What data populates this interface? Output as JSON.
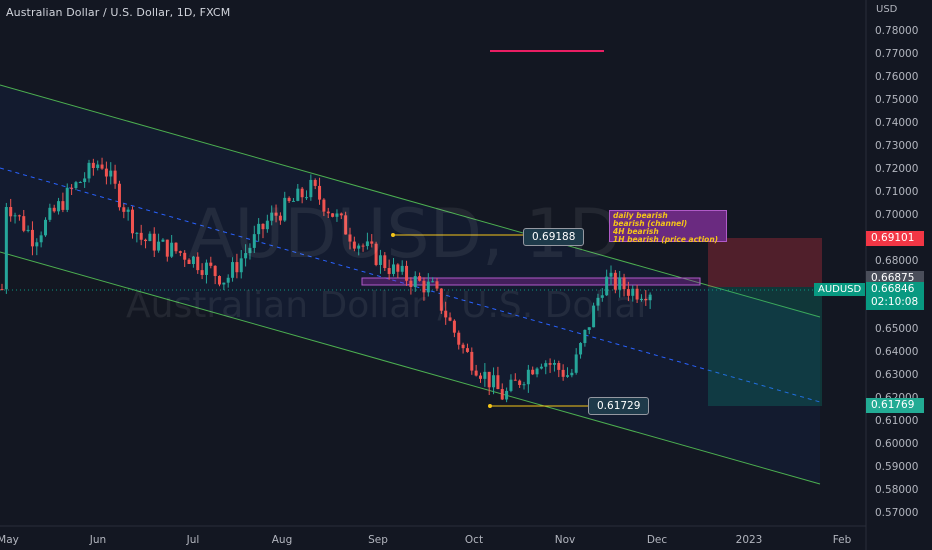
{
  "header": {
    "title": "Australian Dollar / U.S. Dollar, 1D, FXCM",
    "currency": "USD"
  },
  "watermark": {
    "symbol": "AUDUSD, 1D",
    "name": "Australian Dollar / U.S. Dollar"
  },
  "y_axis": {
    "ticks": [
      "0.78000",
      "0.77000",
      "0.76000",
      "0.75000",
      "0.74000",
      "0.73000",
      "0.72000",
      "0.71000",
      "0.70000",
      "0.69000",
      "0.68000",
      "0.67000",
      "0.66000",
      "0.65000",
      "0.64000",
      "0.63000",
      "0.62000",
      "0.61000",
      "0.60000",
      "0.59000",
      "0.58000",
      "0.57000"
    ],
    "min": 0.565,
    "max": 0.79
  },
  "x_axis": {
    "ticks": [
      "May",
      "Jun",
      "Jul",
      "Aug",
      "Sep",
      "Oct",
      "Nov",
      "Dec",
      "2023",
      "Feb"
    ]
  },
  "annotations": {
    "high_label": "0.69188",
    "low_label": "0.61729",
    "note_lines": [
      "daily bearish",
      "bearish (channel)",
      "4H bearish",
      "1H bearish (price action)"
    ]
  },
  "price_tags": {
    "target": "0.69101",
    "entry": "0.66875",
    "current": "0.66846",
    "countdown": "02:10:08",
    "stop": "0.61769",
    "symbol": "AUDUSD"
  },
  "colors": {
    "background": "#131722",
    "up": "#26a69a",
    "down": "#ef5350",
    "channel": "#4caf50",
    "midline": "#2962ff",
    "resistance_zone": "#9c27b0",
    "risk_zone": "#f23645",
    "reward_zone": "#089981"
  },
  "chart_data": {
    "type": "candlestick",
    "title": "Australian Dollar / U.S. Dollar, 1D, FXCM",
    "x_range": [
      "May 2022",
      "Feb 2023"
    ],
    "ylim": [
      0.565,
      0.79
    ],
    "key_levels": {
      "swing_high": 0.69188,
      "swing_low": 0.61729,
      "target": 0.69101,
      "entry": 0.66875,
      "stop": 0.61769,
      "last": 0.66846
    },
    "price_path": [
      {
        "date": "2022-05-02",
        "price": 0.708
      },
      {
        "date": "2022-05-12",
        "price": 0.69
      },
      {
        "date": "2022-05-25",
        "price": 0.712
      },
      {
        "date": "2022-06-03",
        "price": 0.724
      },
      {
        "date": "2022-06-16",
        "price": 0.69
      },
      {
        "date": "2022-07-01",
        "price": 0.683
      },
      {
        "date": "2022-07-14",
        "price": 0.672
      },
      {
        "date": "2022-07-28",
        "price": 0.698
      },
      {
        "date": "2022-08-11",
        "price": 0.712
      },
      {
        "date": "2022-08-25",
        "price": 0.69
      },
      {
        "date": "2022-09-08",
        "price": 0.675
      },
      {
        "date": "2022-09-20",
        "price": 0.668
      },
      {
        "date": "2022-09-30",
        "price": 0.641
      },
      {
        "date": "2022-10-13",
        "price": 0.621
      },
      {
        "date": "2022-10-25",
        "price": 0.638
      },
      {
        "date": "2022-11-04",
        "price": 0.63
      },
      {
        "date": "2022-11-15",
        "price": 0.672
      },
      {
        "date": "2022-11-25",
        "price": 0.667
      },
      {
        "date": "2022-12-01",
        "price": 0.668
      }
    ]
  }
}
